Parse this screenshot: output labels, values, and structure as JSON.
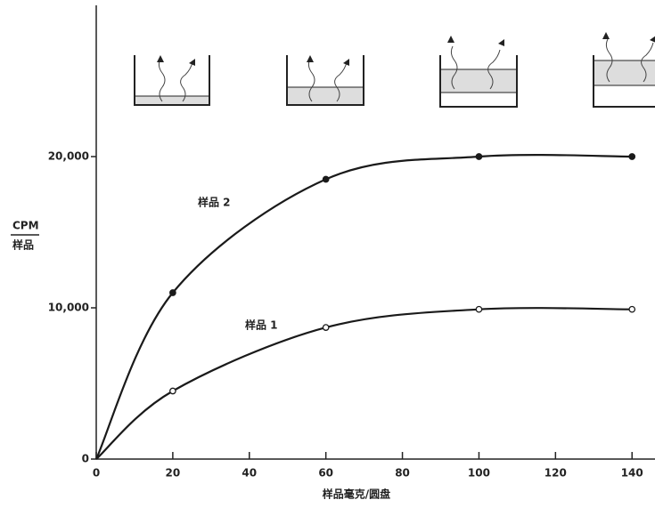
{
  "chart_data": {
    "type": "line",
    "x": [
      0,
      20,
      60,
      100,
      140
    ],
    "series": [
      {
        "name": "样品 2",
        "color": "#1a1a1a",
        "marker": "filled",
        "values": [
          0,
          11000,
          18500,
          20000,
          20000
        ]
      },
      {
        "name": "样品 1",
        "color": "#1a1a1a",
        "marker": "open",
        "values": [
          0,
          4500,
          8700,
          9900,
          9900
        ]
      }
    ],
    "xlim": [
      0,
      146
    ],
    "xticks": [
      0,
      20,
      40,
      60,
      80,
      100,
      120,
      140
    ],
    "ylim": [
      0,
      30000
    ],
    "yticks": [
      0,
      {
        "value": 10000,
        "label": "10,000"
      },
      {
        "value": 20000,
        "label": "20,000"
      }
    ],
    "xlabel": "样品毫克/圆盘",
    "ylabel": {
      "top": "CPM",
      "bottom": "样品"
    },
    "grid": false
  }
}
